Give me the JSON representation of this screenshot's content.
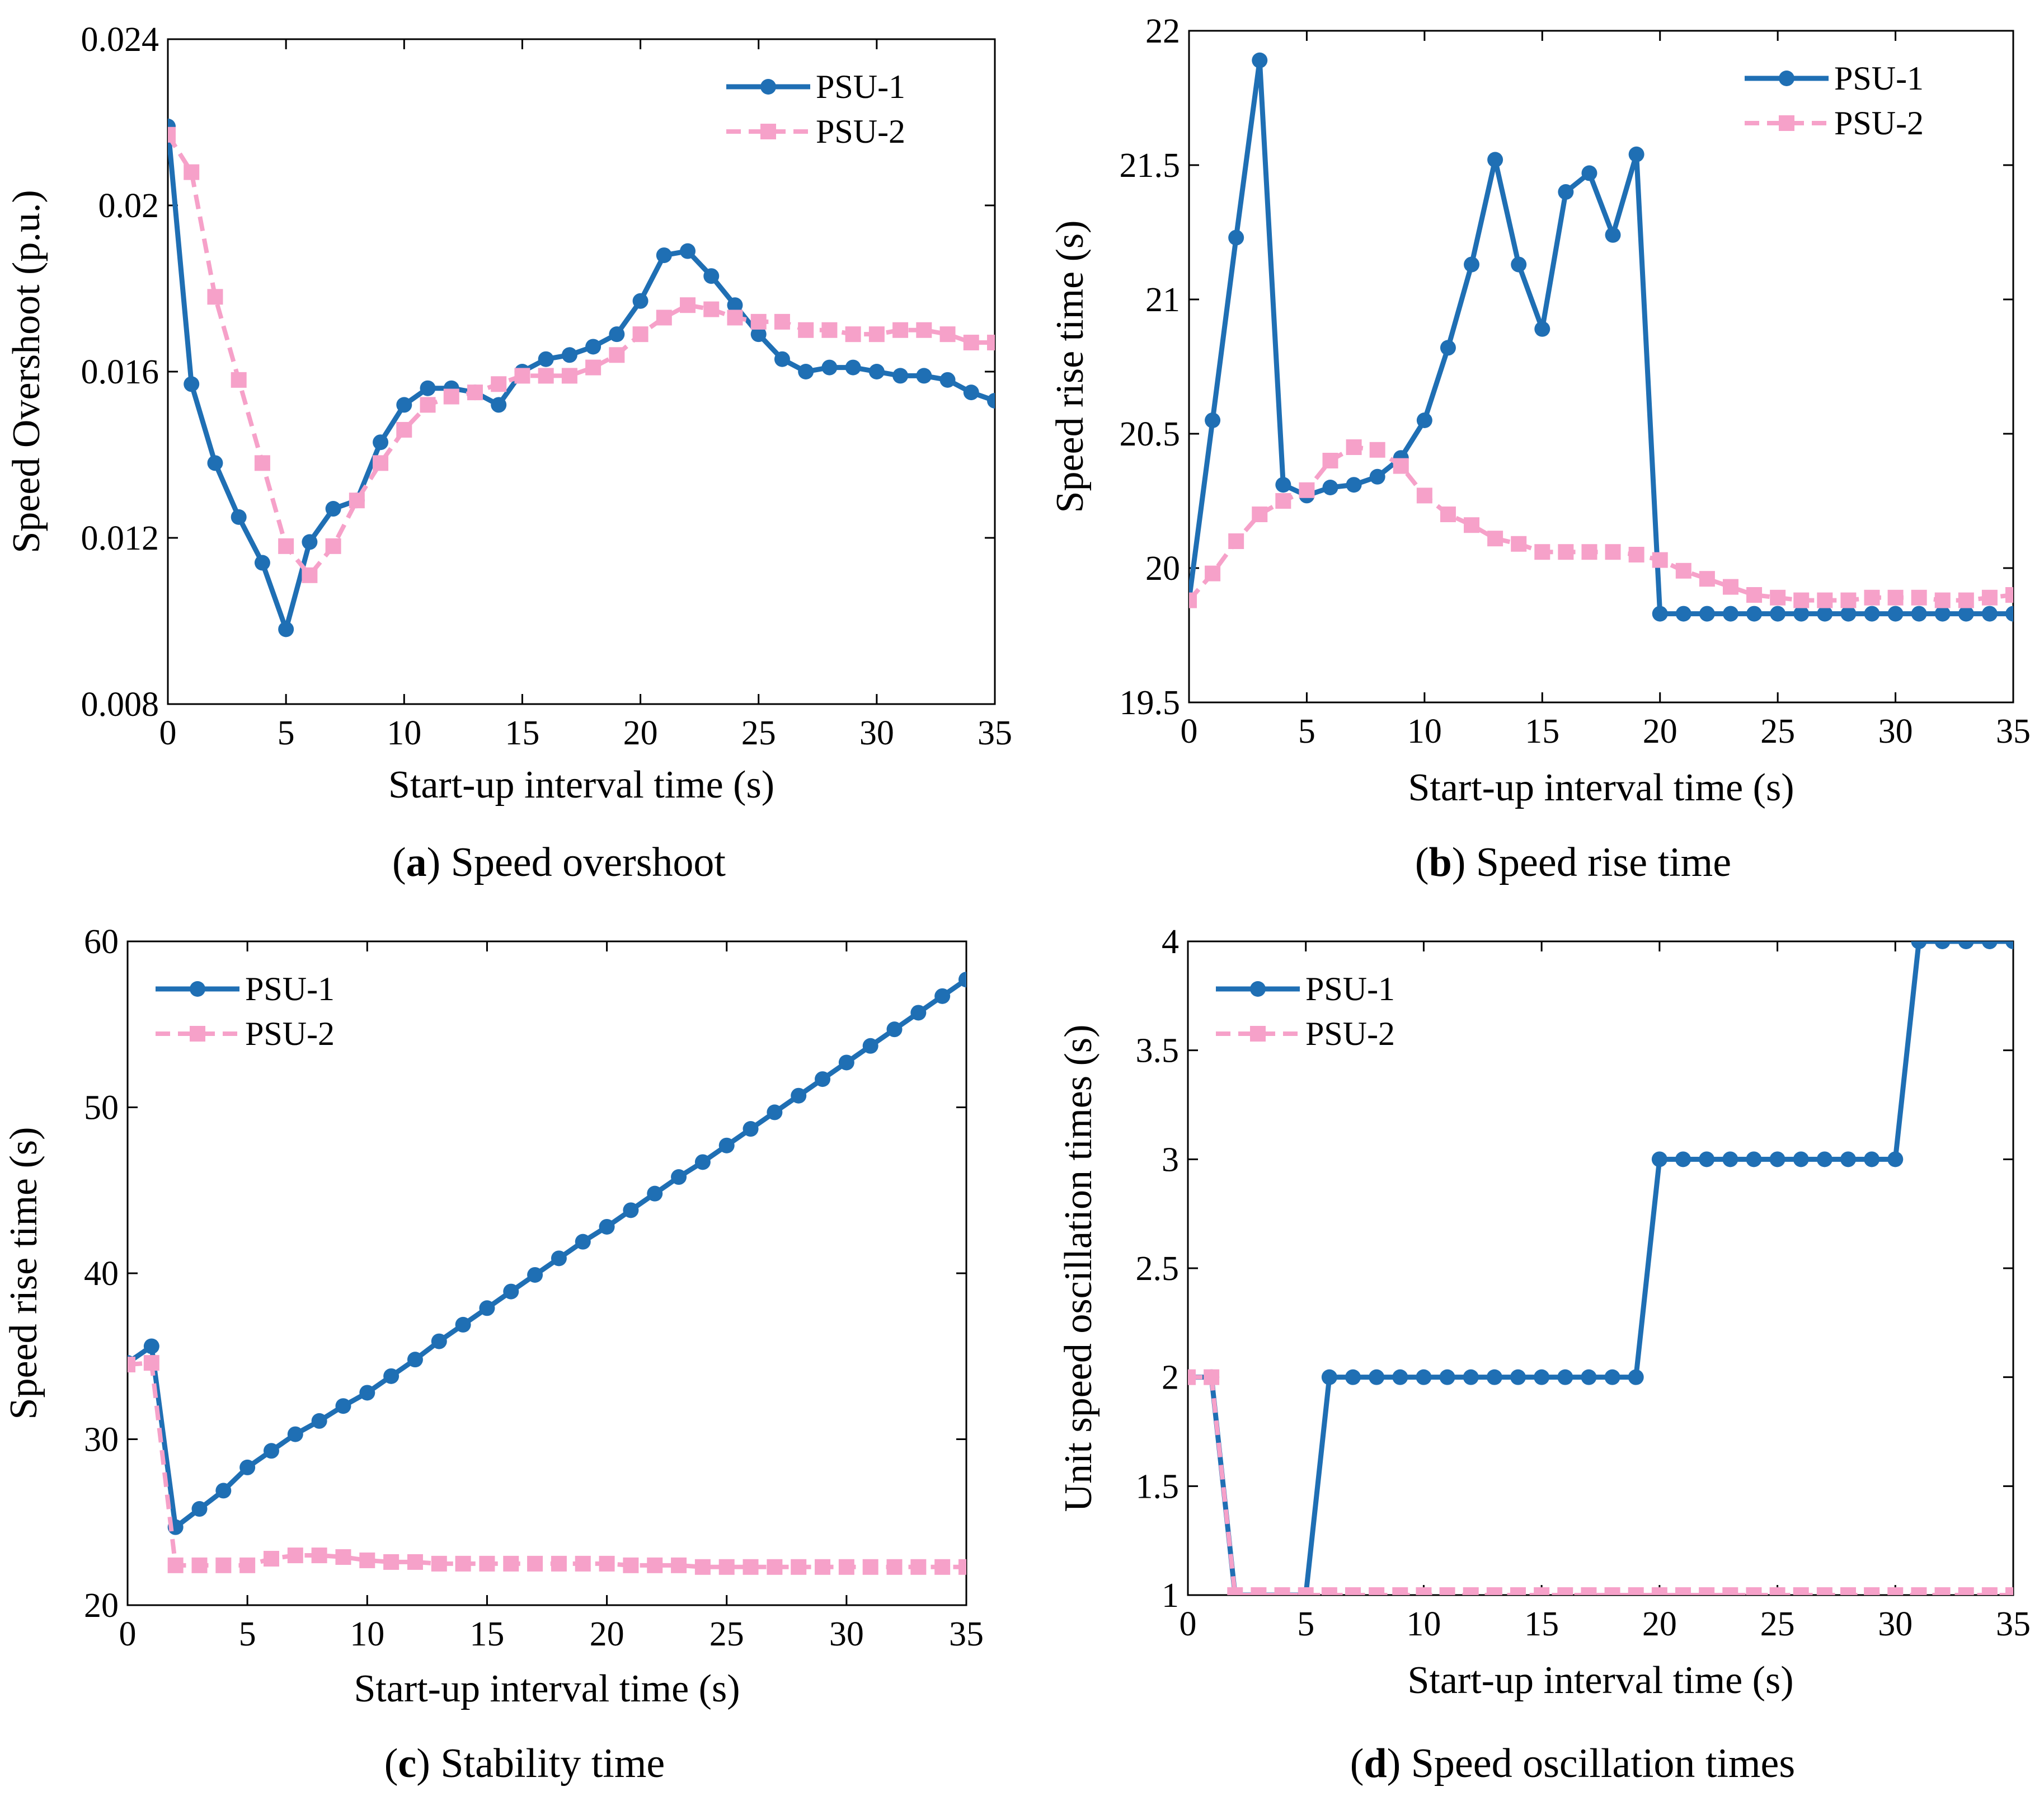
{
  "colors": {
    "psu1": "#1f6fb4",
    "psu2": "#f6a1c9",
    "axis": "#000000",
    "background": "#ffffff"
  },
  "legend_names": [
    "PSU-1",
    "PSU-2"
  ],
  "chart_data": [
    {
      "id": "a",
      "type": "line",
      "caption_letter": "a",
      "caption_paren_open": "(",
      "caption_paren_close": ")",
      "caption_text": " Speed overshoot",
      "xlabel": "Start-up interval time (s)",
      "ylabel": "Speed Overshoot (p.u.)",
      "xlim": [
        0,
        35
      ],
      "ylim": [
        0.008,
        0.024
      ],
      "xticks": [
        0,
        5,
        10,
        15,
        20,
        25,
        30,
        35
      ],
      "yticks": [
        0.008,
        0.012,
        0.016,
        0.02,
        0.024
      ],
      "ytick_labels": [
        "0.008",
        "0.012",
        "0.016",
        "0.02",
        "0.024"
      ],
      "legend_position": "top-right",
      "x": [
        0,
        1,
        2,
        3,
        4,
        5,
        6,
        7,
        8,
        9,
        10,
        11,
        12,
        13,
        14,
        15,
        16,
        17,
        18,
        19,
        20,
        21,
        22,
        23,
        24,
        25,
        26,
        27,
        28,
        29,
        30,
        31,
        32,
        33,
        34,
        35
      ],
      "series": [
        {
          "name": "PSU-1",
          "marker": "circle",
          "values": [
            0.0219,
            0.0157,
            0.0138,
            0.0125,
            0.0114,
            0.0098,
            0.0119,
            0.0127,
            0.0129,
            0.0143,
            0.0152,
            0.0156,
            0.0156,
            0.0155,
            0.0152,
            0.016,
            0.0163,
            0.0164,
            0.0166,
            0.0169,
            0.0177,
            0.0188,
            0.0189,
            0.0183,
            0.0176,
            0.0169,
            0.0163,
            0.016,
            0.0161,
            0.0161,
            0.016,
            0.0159,
            0.0159,
            0.0158,
            0.0155,
            0.0153
          ]
        },
        {
          "name": "PSU-2",
          "marker": "square",
          "values": [
            0.0217,
            0.0208,
            0.0178,
            0.0158,
            0.0138,
            0.0118,
            0.0111,
            0.0118,
            0.0129,
            0.0138,
            0.0146,
            0.0152,
            0.0154,
            0.0155,
            0.0157,
            0.0159,
            0.0159,
            0.0159,
            0.0161,
            0.0164,
            0.0169,
            0.0173,
            0.0176,
            0.0175,
            0.0173,
            0.0172,
            0.0172,
            0.017,
            0.017,
            0.0169,
            0.0169,
            0.017,
            0.017,
            0.0169,
            0.0167,
            0.0167
          ]
        }
      ]
    },
    {
      "id": "b",
      "type": "line",
      "caption_letter": "b",
      "caption_paren_open": "(",
      "caption_paren_close": ")",
      "caption_text": " Speed rise time",
      "xlabel": "Start-up interval time (s)",
      "ylabel": "Speed rise time (s)",
      "xlim": [
        0,
        35
      ],
      "ylim": [
        19.5,
        22
      ],
      "xticks": [
        0,
        5,
        10,
        15,
        20,
        25,
        30,
        35
      ],
      "yticks": [
        19.5,
        20,
        20.5,
        21,
        21.5,
        22
      ],
      "ytick_labels": [
        "19.5",
        "20",
        "20.5",
        "21",
        "21.5",
        "22"
      ],
      "legend_position": "top-right",
      "x": [
        0,
        1,
        2,
        3,
        4,
        5,
        6,
        7,
        8,
        9,
        10,
        11,
        12,
        13,
        14,
        15,
        16,
        17,
        18,
        19,
        20,
        21,
        22,
        23,
        24,
        25,
        26,
        27,
        28,
        29,
        30,
        31,
        32,
        33,
        34,
        35
      ],
      "series": [
        {
          "name": "PSU-1",
          "marker": "circle",
          "values": [
            19.88,
            20.55,
            21.23,
            21.89,
            20.31,
            20.27,
            20.3,
            20.31,
            20.34,
            20.41,
            20.55,
            20.82,
            21.13,
            21.52,
            21.13,
            20.89,
            21.4,
            21.47,
            21.24,
            21.54,
            19.83,
            19.83,
            19.83,
            19.83,
            19.83,
            19.83,
            19.83,
            19.83,
            19.83,
            19.83,
            19.83,
            19.83,
            19.83,
            19.83,
            19.83,
            19.83
          ]
        },
        {
          "name": "PSU-2",
          "marker": "square",
          "values": [
            19.88,
            19.98,
            20.1,
            20.2,
            20.25,
            20.29,
            20.4,
            20.45,
            20.44,
            20.38,
            20.27,
            20.2,
            20.16,
            20.11,
            20.09,
            20.06,
            20.06,
            20.06,
            20.06,
            20.05,
            20.03,
            19.99,
            19.96,
            19.93,
            19.9,
            19.89,
            19.88,
            19.88,
            19.88,
            19.89,
            19.89,
            19.89,
            19.88,
            19.88,
            19.89,
            19.9
          ]
        }
      ]
    },
    {
      "id": "c",
      "type": "line",
      "caption_letter": "c",
      "caption_paren_open": "(",
      "caption_paren_close": ")",
      "caption_text": " Stability time",
      "xlabel": "Start-up interval time (s)",
      "ylabel": "Speed rise time (s)",
      "xlim": [
        0,
        35
      ],
      "ylim": [
        20,
        60
      ],
      "xticks": [
        0,
        5,
        10,
        15,
        20,
        25,
        30,
        35
      ],
      "yticks": [
        20,
        30,
        40,
        50,
        60
      ],
      "ytick_labels": [
        "20",
        "30",
        "40",
        "50",
        "60"
      ],
      "legend_position": "top-left",
      "x": [
        0,
        1,
        2,
        3,
        4,
        5,
        6,
        7,
        8,
        9,
        10,
        11,
        12,
        13,
        14,
        15,
        16,
        17,
        18,
        19,
        20,
        21,
        22,
        23,
        24,
        25,
        26,
        27,
        28,
        29,
        30,
        31,
        32,
        33,
        34,
        35
      ],
      "series": [
        {
          "name": "PSU-1",
          "marker": "circle",
          "values": [
            34.6,
            35.6,
            24.7,
            25.8,
            26.9,
            28.3,
            29.3,
            30.3,
            31.1,
            32.0,
            32.8,
            33.8,
            34.8,
            35.9,
            36.9,
            37.9,
            38.9,
            39.9,
            40.9,
            41.9,
            42.8,
            43.8,
            44.8,
            45.8,
            46.7,
            47.7,
            48.7,
            49.7,
            50.7,
            51.7,
            52.7,
            53.7,
            54.7,
            55.7,
            56.7,
            57.7
          ]
        },
        {
          "name": "PSU-2",
          "marker": "square",
          "values": [
            34.5,
            34.6,
            22.4,
            22.4,
            22.4,
            22.4,
            22.8,
            23.0,
            23.0,
            22.9,
            22.7,
            22.6,
            22.6,
            22.5,
            22.5,
            22.5,
            22.5,
            22.5,
            22.5,
            22.5,
            22.5,
            22.4,
            22.4,
            22.4,
            22.3,
            22.3,
            22.3,
            22.3,
            22.3,
            22.3,
            22.3,
            22.3,
            22.3,
            22.3,
            22.3,
            22.3
          ]
        }
      ]
    },
    {
      "id": "d",
      "type": "line",
      "caption_letter": "d",
      "caption_paren_open": "(",
      "caption_paren_close": ")",
      "caption_text": " Speed oscillation times",
      "xlabel": "Start-up interval time (s)",
      "ylabel": "Unit speed oscillation times (s)",
      "xlim": [
        0,
        35
      ],
      "ylim": [
        1,
        4
      ],
      "xticks": [
        0,
        5,
        10,
        15,
        20,
        25,
        30,
        35
      ],
      "yticks": [
        1,
        1.5,
        2,
        2.5,
        3,
        3.5,
        4
      ],
      "ytick_labels": [
        "1",
        "1.5",
        "2",
        "2.5",
        "3",
        "3.5",
        "4"
      ],
      "legend_position": "top-left",
      "x": [
        0,
        1,
        2,
        3,
        4,
        5,
        6,
        7,
        8,
        9,
        10,
        11,
        12,
        13,
        14,
        15,
        16,
        17,
        18,
        19,
        20,
        21,
        22,
        23,
        24,
        25,
        26,
        27,
        28,
        29,
        30,
        31,
        32,
        33,
        34,
        35
      ],
      "series": [
        {
          "name": "PSU-1",
          "marker": "circle",
          "values": [
            2,
            2,
            1,
            1,
            1,
            1,
            2,
            2,
            2,
            2,
            2,
            2,
            2,
            2,
            2,
            2,
            2,
            2,
            2,
            2,
            3,
            3,
            3,
            3,
            3,
            3,
            3,
            3,
            3,
            3,
            3,
            4,
            4,
            4,
            4,
            4
          ]
        },
        {
          "name": "PSU-2",
          "marker": "square",
          "values": [
            2,
            2,
            1,
            1,
            1,
            1,
            1,
            1,
            1,
            1,
            1,
            1,
            1,
            1,
            1,
            1,
            1,
            1,
            1,
            1,
            1,
            1,
            1,
            1,
            1,
            1,
            1,
            1,
            1,
            1,
            1,
            1,
            1,
            1,
            1,
            1
          ]
        }
      ]
    }
  ]
}
